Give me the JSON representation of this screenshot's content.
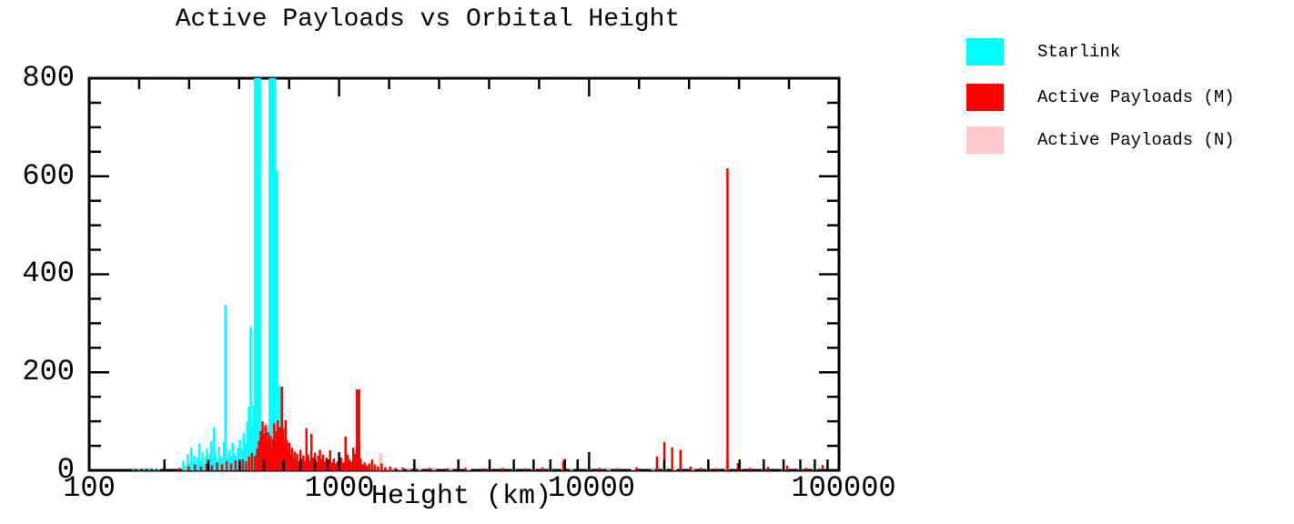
{
  "title": "Active Payloads vs Orbital Height",
  "chart_data": {
    "type": "bar",
    "title": "Active Payloads vs Orbital Height",
    "xlabel": "Height (km)",
    "ylabel": "",
    "x_scale": "log",
    "xlim": [
      100,
      100000
    ],
    "ylim": [
      0,
      800
    ],
    "grid": "off",
    "x_tick_labels": [
      "100",
      "1000",
      "10000",
      "100000"
    ],
    "y_tick_labels": [
      "0",
      "200",
      "400",
      "600",
      "800"
    ],
    "y_minor_tick_step": 50,
    "legend_position": "outside-top-right",
    "note": "Histogram of active payload counts vs orbital height; bars with value 999 exceed the y-axis maximum of 800 and are clipped at the plot top (Starlink shells near 470 and 540 km).",
    "series": [
      {
        "name": "Starlink",
        "color": "#00ffff",
        "bar_width": 2.5,
        "points": [
          [
            150,
            2
          ],
          [
            158,
            3
          ],
          [
            166,
            2
          ],
          [
            174,
            4
          ],
          [
            182,
            3
          ],
          [
            190,
            3
          ],
          [
            200,
            6
          ],
          [
            238,
            20
          ],
          [
            243,
            10
          ],
          [
            248,
            33
          ],
          [
            252,
            15
          ],
          [
            256,
            46
          ],
          [
            260,
            18
          ],
          [
            264,
            30
          ],
          [
            268,
            12
          ],
          [
            272,
            26
          ],
          [
            276,
            55
          ],
          [
            280,
            20
          ],
          [
            284,
            38
          ],
          [
            288,
            14
          ],
          [
            292,
            28
          ],
          [
            296,
            45
          ],
          [
            300,
            17
          ],
          [
            304,
            34
          ],
          [
            308,
            60
          ],
          [
            312,
            25
          ],
          [
            316,
            88
          ],
          [
            320,
            35
          ],
          [
            325,
            20
          ],
          [
            330,
            48
          ],
          [
            335,
            28
          ],
          [
            341,
            24
          ],
          [
            346,
            58
          ],
          [
            351,
            338
          ],
          [
            357,
            26
          ],
          [
            363,
            42
          ],
          [
            369,
            30
          ],
          [
            375,
            56
          ],
          [
            381,
            34
          ],
          [
            388,
            28
          ],
          [
            394,
            46
          ],
          [
            401,
            62
          ],
          [
            408,
            40
          ],
          [
            415,
            76
          ],
          [
            422,
            54
          ],
          [
            429,
            100
          ],
          [
            436,
            130
          ],
          [
            443,
            291
          ],
          [
            449,
            92
          ],
          [
            454,
            132
          ],
          [
            459,
            70
          ],
          [
            464,
            46
          ],
          [
            471,
            999,
            8
          ],
          [
            500,
            30
          ],
          [
            515,
            25
          ],
          [
            540,
            999,
            8
          ],
          [
            565,
            612
          ],
          [
            572,
            40
          ],
          [
            578,
            172
          ],
          [
            585,
            55
          ],
          [
            592,
            30
          ],
          [
            600,
            20
          ],
          [
            610,
            12
          ],
          [
            625,
            8
          ]
        ]
      },
      {
        "name": "Active Payloads (M)",
        "color": "#ff0000",
        "bar_width": 2.5,
        "points": [
          [
            200,
            8
          ],
          [
            230,
            5
          ],
          [
            250,
            8
          ],
          [
            265,
            12
          ],
          [
            280,
            8
          ],
          [
            295,
            14
          ],
          [
            310,
            10
          ],
          [
            325,
            16
          ],
          [
            340,
            12
          ],
          [
            355,
            18
          ],
          [
            370,
            14
          ],
          [
            385,
            20
          ],
          [
            400,
            16
          ],
          [
            412,
            22
          ],
          [
            424,
            18
          ],
          [
            436,
            28
          ],
          [
            448,
            35
          ],
          [
            460,
            30
          ],
          [
            470,
            45
          ],
          [
            478,
            60
          ],
          [
            486,
            80
          ],
          [
            494,
            100
          ],
          [
            502,
            75
          ],
          [
            508,
            92
          ],
          [
            514,
            60
          ],
          [
            520,
            78
          ],
          [
            526,
            55
          ],
          [
            532,
            70
          ],
          [
            538,
            48
          ],
          [
            544,
            64
          ],
          [
            550,
            96
          ],
          [
            556,
            58
          ],
          [
            562,
            80
          ],
          [
            568,
            102
          ],
          [
            574,
            66
          ],
          [
            580,
            88
          ],
          [
            590,
            171
          ],
          [
            597,
            85
          ],
          [
            604,
            55
          ],
          [
            611,
            102
          ],
          [
            618,
            62
          ],
          [
            625,
            42
          ],
          [
            632,
            56
          ],
          [
            640,
            32
          ],
          [
            648,
            46
          ],
          [
            656,
            26
          ],
          [
            664,
            38
          ],
          [
            672,
            22
          ],
          [
            680,
            34
          ],
          [
            690,
            18
          ],
          [
            700,
            42
          ],
          [
            710,
            24
          ],
          [
            720,
            30
          ],
          [
            730,
            18
          ],
          [
            740,
            86
          ],
          [
            752,
            32
          ],
          [
            764,
            20
          ],
          [
            775,
            74
          ],
          [
            788,
            26
          ],
          [
            800,
            36
          ],
          [
            812,
            18
          ],
          [
            825,
            30
          ],
          [
            838,
            42
          ],
          [
            850,
            22
          ],
          [
            863,
            32
          ],
          [
            876,
            18
          ],
          [
            890,
            26
          ],
          [
            905,
            22
          ],
          [
            920,
            41
          ],
          [
            936,
            16
          ],
          [
            952,
            24
          ],
          [
            968,
            14
          ],
          [
            985,
            18
          ],
          [
            1002,
            12
          ],
          [
            1020,
            26
          ],
          [
            1040,
            16
          ],
          [
            1060,
            69
          ],
          [
            1080,
            32
          ],
          [
            1100,
            22
          ],
          [
            1120,
            18
          ],
          [
            1140,
            46
          ],
          [
            1160,
            34
          ],
          [
            1178,
            150
          ],
          [
            1190,
            165,
            5
          ],
          [
            1205,
            58
          ],
          [
            1220,
            24
          ],
          [
            1240,
            12
          ],
          [
            1265,
            16
          ],
          [
            1290,
            10
          ],
          [
            1320,
            14
          ],
          [
            1355,
            22
          ],
          [
            1390,
            12
          ],
          [
            1430,
            8
          ],
          [
            1480,
            14
          ],
          [
            1530,
            6
          ],
          [
            1600,
            8
          ],
          [
            1680,
            5
          ],
          [
            1800,
            6
          ],
          [
            2000,
            4
          ],
          [
            2300,
            5
          ],
          [
            2700,
            4
          ],
          [
            3200,
            5
          ],
          [
            3800,
            4
          ],
          [
            4500,
            5
          ],
          [
            5500,
            4
          ],
          [
            6500,
            6
          ],
          [
            7900,
            18
          ],
          [
            9000,
            4
          ],
          [
            11000,
            5
          ],
          [
            13000,
            4
          ],
          [
            15500,
            6
          ],
          [
            18700,
            28
          ],
          [
            20000,
            58
          ],
          [
            21500,
            47
          ],
          [
            23200,
            42
          ],
          [
            25500,
            8
          ],
          [
            28000,
            5
          ],
          [
            32000,
            4
          ],
          [
            35786,
            616
          ],
          [
            39400,
            15
          ],
          [
            44000,
            5
          ],
          [
            52000,
            7
          ],
          [
            62000,
            10
          ],
          [
            74000,
            5
          ],
          [
            86000,
            11
          ]
        ]
      },
      {
        "name": "Active Payloads (N)",
        "color": "#ffc9c9",
        "bar_width": 4.5,
        "points": [
          [
            250,
            3
          ],
          [
            265,
            4
          ],
          [
            280,
            6
          ],
          [
            295,
            8
          ],
          [
            310,
            10
          ],
          [
            325,
            12
          ],
          [
            340,
            14
          ],
          [
            355,
            16
          ],
          [
            370,
            18
          ],
          [
            385,
            21
          ],
          [
            400,
            25
          ],
          [
            415,
            30
          ],
          [
            430,
            36
          ],
          [
            445,
            44
          ],
          [
            460,
            54
          ],
          [
            475,
            68
          ],
          [
            488,
            80
          ],
          [
            500,
            92
          ],
          [
            510,
            97
          ],
          [
            520,
            92
          ],
          [
            530,
            84
          ],
          [
            542,
            76
          ],
          [
            554,
            78
          ],
          [
            566,
            70
          ],
          [
            578,
            62
          ],
          [
            590,
            52
          ],
          [
            602,
            44
          ],
          [
            615,
            36
          ],
          [
            628,
            30
          ],
          [
            642,
            25
          ],
          [
            656,
            20
          ],
          [
            670,
            17
          ],
          [
            685,
            15
          ],
          [
            700,
            13
          ],
          [
            716,
            11
          ],
          [
            732,
            12
          ],
          [
            748,
            10
          ],
          [
            765,
            9
          ],
          [
            782,
            11
          ],
          [
            800,
            8
          ],
          [
            818,
            9
          ],
          [
            836,
            7
          ],
          [
            855,
            8
          ],
          [
            874,
            6
          ],
          [
            894,
            7
          ],
          [
            914,
            5
          ],
          [
            934,
            6
          ],
          [
            955,
            4
          ],
          [
            977,
            5
          ],
          [
            1000,
            4
          ],
          [
            1023,
            5
          ],
          [
            1046,
            4
          ],
          [
            1070,
            6
          ],
          [
            1094,
            5
          ],
          [
            1119,
            8
          ],
          [
            1145,
            6
          ],
          [
            1171,
            5
          ],
          [
            1198,
            7
          ],
          [
            1225,
            4
          ],
          [
            1253,
            3
          ],
          [
            1282,
            4
          ],
          [
            1311,
            3
          ],
          [
            1341,
            3
          ],
          [
            1372,
            4
          ],
          [
            1403,
            3
          ],
          [
            1435,
            3
          ],
          [
            1468,
            35
          ],
          [
            1500,
            4
          ],
          [
            1570,
            3
          ],
          [
            1650,
            2
          ],
          [
            1750,
            3
          ],
          [
            1900,
            2
          ],
          [
            2100,
            2
          ],
          [
            2400,
            2
          ],
          [
            2800,
            2
          ],
          [
            3300,
            3
          ],
          [
            4000,
            2
          ],
          [
            5000,
            2
          ],
          [
            6000,
            3
          ],
          [
            7000,
            2
          ],
          [
            7900,
            26
          ],
          [
            8500,
            2
          ],
          [
            10000,
            2
          ],
          [
            12000,
            2
          ],
          [
            15000,
            3
          ],
          [
            18000,
            2
          ],
          [
            20000,
            4
          ],
          [
            22000,
            3
          ],
          [
            26000,
            2
          ],
          [
            30000,
            2
          ],
          [
            35700,
            20
          ],
          [
            40000,
            3
          ],
          [
            50000,
            2
          ],
          [
            60000,
            3
          ],
          [
            70000,
            4
          ],
          [
            80000,
            3
          ],
          [
            90000,
            6
          ]
        ]
      }
    ]
  }
}
